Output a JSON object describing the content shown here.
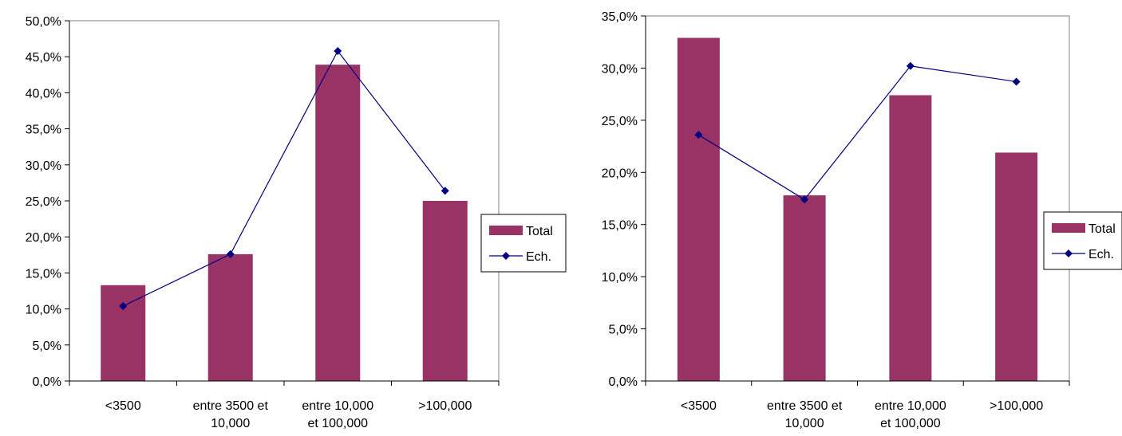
{
  "colors": {
    "bar": "#993366",
    "line": "#000080",
    "axis": "#808080",
    "grid": "#808080"
  },
  "chart_data": [
    {
      "type": "bar",
      "categories": [
        "<3500",
        "entre 3500 et 10,000",
        "entre 10,000 et 100,000",
        ">100,000"
      ],
      "category_lines": [
        [
          "<3500"
        ],
        [
          "entre 3500 et",
          "10,000"
        ],
        [
          "entre 10,000",
          "et 100,000"
        ],
        [
          ">100,000"
        ]
      ],
      "series": [
        {
          "name": "Total",
          "type": "bar",
          "values": [
            13.3,
            17.6,
            43.9,
            25.0
          ]
        },
        {
          "name": "Ech.",
          "type": "line",
          "values": [
            10.4,
            17.6,
            45.8,
            26.4
          ]
        }
      ],
      "ylim": [
        0,
        50
      ],
      "yticks": [
        "0,0%",
        "5,0%",
        "10,0%",
        "15,0%",
        "20,0%",
        "25,0%",
        "30,0%",
        "35,0%",
        "40,0%",
        "45,0%",
        "50,0%"
      ],
      "legend": [
        "Total",
        "Ech."
      ],
      "legend_position": "right",
      "grid": false
    },
    {
      "type": "bar",
      "categories": [
        "<3500",
        "entre 3500 et 10,000",
        "entre 10,000 et 100,000",
        ">100,000"
      ],
      "category_lines": [
        [
          "<3500"
        ],
        [
          "entre 3500 et",
          "10,000"
        ],
        [
          "entre 10,000",
          "et 100,000"
        ],
        [
          ">100,000"
        ]
      ],
      "series": [
        {
          "name": "Total",
          "type": "bar",
          "values": [
            32.9,
            17.8,
            27.4,
            21.9
          ]
        },
        {
          "name": "Ech.",
          "type": "line",
          "values": [
            23.6,
            17.4,
            30.2,
            28.7
          ]
        }
      ],
      "ylim": [
        0,
        35
      ],
      "yticks": [
        "0,0%",
        "5,0%",
        "10,0%",
        "15,0%",
        "20,0%",
        "25,0%",
        "30,0%",
        "35,0%"
      ],
      "legend": [
        "Total",
        "Ech."
      ],
      "legend_position": "right",
      "grid": false
    }
  ]
}
